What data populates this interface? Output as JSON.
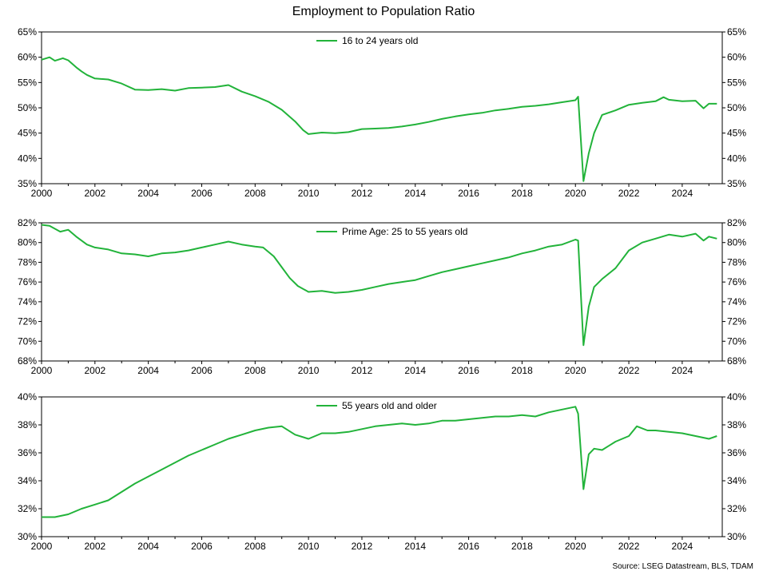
{
  "title": "Employment to Population Ratio",
  "source": "Source: LSEG Datastream, BLS, TDAM",
  "line_color": "#22b33a",
  "chart_data": [
    {
      "type": "line",
      "legend_position": "top-center",
      "x_ticks": [
        "2000",
        "2002",
        "2004",
        "2006",
        "2008",
        "2010",
        "2012",
        "2014",
        "2016",
        "2018",
        "2020",
        "2022",
        "2024"
      ],
      "xlim": [
        2000,
        2025.5
      ],
      "ylim": [
        35,
        65
      ],
      "y_ticks": [
        "35%",
        "40%",
        "45%",
        "50%",
        "55%",
        "60%",
        "65%"
      ],
      "grid": false,
      "series": [
        {
          "name": "16 to 24 years old",
          "x": [
            2000.0,
            2000.3,
            2000.5,
            2000.8,
            2001.0,
            2001.3,
            2001.5,
            2001.7,
            2002.0,
            2002.5,
            2003.0,
            2003.5,
            2004.0,
            2004.5,
            2005.0,
            2005.5,
            2006.0,
            2006.5,
            2007.0,
            2007.5,
            2008.0,
            2008.5,
            2009.0,
            2009.5,
            2009.8,
            2010.0,
            2010.5,
            2011.0,
            2011.5,
            2012.0,
            2012.5,
            2013.0,
            2013.5,
            2014.0,
            2014.5,
            2015.0,
            2015.5,
            2016.0,
            2016.5,
            2017.0,
            2017.5,
            2018.0,
            2018.5,
            2019.0,
            2019.5,
            2020.0,
            2020.1,
            2020.3,
            2020.5,
            2020.7,
            2021.0,
            2021.5,
            2022.0,
            2022.5,
            2023.0,
            2023.3,
            2023.5,
            2024.0,
            2024.5,
            2024.8,
            2025.0,
            2025.3
          ],
          "values": [
            59.5,
            60.0,
            59.3,
            59.8,
            59.4,
            58.0,
            57.2,
            56.5,
            55.8,
            55.6,
            54.8,
            53.6,
            53.5,
            53.7,
            53.4,
            53.9,
            54.0,
            54.1,
            54.5,
            53.2,
            52.3,
            51.2,
            49.6,
            47.3,
            45.6,
            44.8,
            45.1,
            45.0,
            45.2,
            45.8,
            45.9,
            46.0,
            46.3,
            46.7,
            47.2,
            47.8,
            48.3,
            48.7,
            49.0,
            49.5,
            49.8,
            50.2,
            50.4,
            50.7,
            51.1,
            51.5,
            52.2,
            35.5,
            41.0,
            45.0,
            48.6,
            49.5,
            50.6,
            51.0,
            51.3,
            52.1,
            51.6,
            51.3,
            51.4,
            49.9,
            50.8,
            50.8
          ]
        }
      ]
    },
    {
      "type": "line",
      "legend_position": "top-center",
      "x_ticks": [
        "2000",
        "2002",
        "2004",
        "2006",
        "2008",
        "2010",
        "2012",
        "2014",
        "2016",
        "2018",
        "2020",
        "2022",
        "2024"
      ],
      "xlim": [
        2000,
        2025.5
      ],
      "ylim": [
        68,
        82
      ],
      "y_ticks": [
        "68%",
        "70%",
        "72%",
        "74%",
        "76%",
        "78%",
        "80%",
        "82%"
      ],
      "grid": false,
      "series": [
        {
          "name": "Prime Age: 25 to 55 years old",
          "x": [
            2000.0,
            2000.3,
            2000.7,
            2001.0,
            2001.3,
            2001.7,
            2002.0,
            2002.5,
            2003.0,
            2003.5,
            2004.0,
            2004.5,
            2005.0,
            2005.5,
            2006.0,
            2006.5,
            2007.0,
            2007.5,
            2008.0,
            2008.3,
            2008.7,
            2009.0,
            2009.3,
            2009.6,
            2010.0,
            2010.5,
            2011.0,
            2011.5,
            2012.0,
            2012.5,
            2013.0,
            2013.5,
            2014.0,
            2014.5,
            2015.0,
            2015.5,
            2016.0,
            2016.5,
            2017.0,
            2017.5,
            2018.0,
            2018.5,
            2019.0,
            2019.5,
            2020.0,
            2020.1,
            2020.3,
            2020.5,
            2020.7,
            2021.0,
            2021.5,
            2022.0,
            2022.5,
            2023.0,
            2023.5,
            2024.0,
            2024.5,
            2024.8,
            2025.0,
            2025.3
          ],
          "values": [
            81.8,
            81.7,
            81.1,
            81.3,
            80.6,
            79.8,
            79.5,
            79.3,
            78.9,
            78.8,
            78.6,
            78.9,
            79.0,
            79.2,
            79.5,
            79.8,
            80.1,
            79.8,
            79.6,
            79.5,
            78.6,
            77.5,
            76.4,
            75.6,
            75.0,
            75.1,
            74.9,
            75.0,
            75.2,
            75.5,
            75.8,
            76.0,
            76.2,
            76.6,
            77.0,
            77.3,
            77.6,
            77.9,
            78.2,
            78.5,
            78.9,
            79.2,
            79.6,
            79.8,
            80.3,
            80.2,
            69.6,
            73.5,
            75.5,
            76.3,
            77.4,
            79.2,
            80.0,
            80.4,
            80.8,
            80.6,
            80.9,
            80.2,
            80.6,
            80.4
          ]
        }
      ]
    },
    {
      "type": "line",
      "legend_position": "top-center",
      "x_ticks": [
        "2000",
        "2002",
        "2004",
        "2006",
        "2008",
        "2010",
        "2012",
        "2014",
        "2016",
        "2018",
        "2020",
        "2022",
        "2024"
      ],
      "xlim": [
        2000,
        2025.5
      ],
      "ylim": [
        30,
        40
      ],
      "y_ticks": [
        "30%",
        "32%",
        "34%",
        "36%",
        "38%",
        "40%"
      ],
      "grid": false,
      "series": [
        {
          "name": "55 years old and older",
          "x": [
            2000.0,
            2000.5,
            2001.0,
            2001.5,
            2002.0,
            2002.5,
            2003.0,
            2003.5,
            2004.0,
            2004.5,
            2005.0,
            2005.5,
            2006.0,
            2006.5,
            2007.0,
            2007.5,
            2008.0,
            2008.5,
            2009.0,
            2009.5,
            2010.0,
            2010.5,
            2011.0,
            2011.5,
            2012.0,
            2012.5,
            2013.0,
            2013.5,
            2014.0,
            2014.5,
            2015.0,
            2015.5,
            2016.0,
            2016.5,
            2017.0,
            2017.5,
            2018.0,
            2018.5,
            2019.0,
            2019.5,
            2020.0,
            2020.1,
            2020.3,
            2020.5,
            2020.7,
            2021.0,
            2021.5,
            2022.0,
            2022.3,
            2022.7,
            2023.0,
            2023.5,
            2024.0,
            2024.5,
            2025.0,
            2025.3
          ],
          "values": [
            31.4,
            31.4,
            31.6,
            32.0,
            32.3,
            32.6,
            33.2,
            33.8,
            34.3,
            34.8,
            35.3,
            35.8,
            36.2,
            36.6,
            37.0,
            37.3,
            37.6,
            37.8,
            37.9,
            37.3,
            37.0,
            37.4,
            37.4,
            37.5,
            37.7,
            37.9,
            38.0,
            38.1,
            38.0,
            38.1,
            38.3,
            38.3,
            38.4,
            38.5,
            38.6,
            38.6,
            38.7,
            38.6,
            38.9,
            39.1,
            39.3,
            38.8,
            33.4,
            35.9,
            36.3,
            36.2,
            36.8,
            37.2,
            37.9,
            37.6,
            37.6,
            37.5,
            37.4,
            37.2,
            37.0,
            37.2
          ]
        }
      ]
    }
  ]
}
